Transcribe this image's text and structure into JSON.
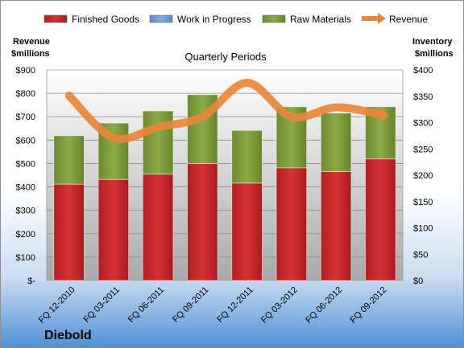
{
  "chart_data": {
    "type": "bar",
    "stacked": true,
    "subtitle": "Quarterly Periods",
    "company": "Diebold",
    "left_axis_title": [
      "Revenue",
      "$millions"
    ],
    "right_axis_title": [
      "Inventory",
      "$millions"
    ],
    "categories": [
      "FQ 12-2010",
      "FQ 03-2011",
      "FQ 06-2011",
      "FQ 09-2011",
      "FQ 12-2011",
      "FQ 03-2012",
      "FQ 06-2012",
      "FQ 09-2012"
    ],
    "series": [
      {
        "name": "Finished Goods",
        "axis": "right",
        "color": "#c0282a",
        "values": [
          183,
          192,
          202,
          222,
          185,
          214,
          207,
          231
        ]
      },
      {
        "name": "Work in Progress",
        "axis": "right",
        "color": "#6f97d0",
        "values": [
          0,
          0,
          0,
          0,
          0,
          0,
          0,
          0
        ]
      },
      {
        "name": "Raw Materials",
        "axis": "right",
        "color": "#7a9a3a",
        "values": [
          92,
          107,
          120,
          131,
          100,
          116,
          111,
          99
        ]
      },
      {
        "name": "Revenue",
        "axis": "left",
        "type": "line",
        "color": "#e8873a",
        "values": [
          790,
          610,
          655,
          700,
          845,
          700,
          740,
          710
        ]
      }
    ],
    "left_axis": {
      "min": 0,
      "max": 900,
      "step": 100,
      "tick_labels": [
        "$-",
        "$100",
        "$200",
        "$300",
        "$400",
        "$500",
        "$600",
        "$700",
        "$800",
        "$900"
      ]
    },
    "right_axis": {
      "min": 0,
      "max": 400,
      "step": 50,
      "tick_labels": [
        "$0",
        "$50",
        "$100",
        "$150",
        "$200",
        "$250",
        "$300",
        "$350",
        "$400"
      ]
    },
    "legend_position": "top",
    "grid": true
  }
}
